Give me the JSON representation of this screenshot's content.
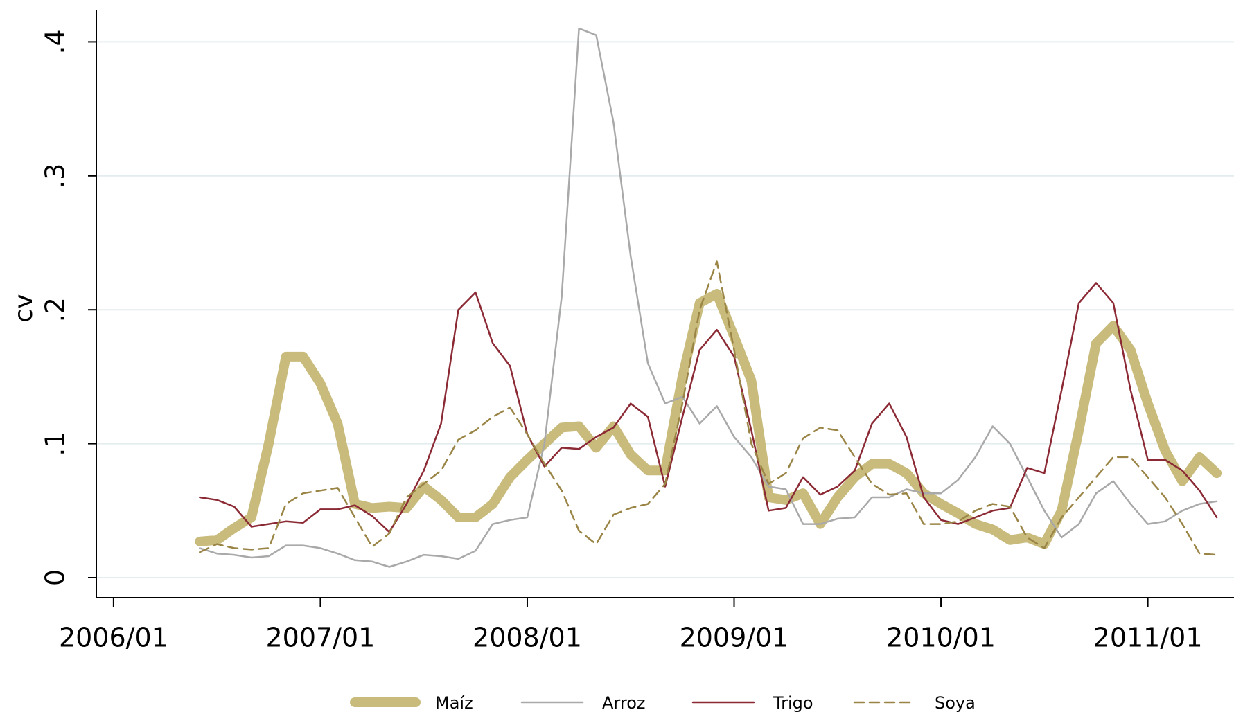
{
  "chart_data": {
    "type": "line",
    "ylabel": "cv",
    "x": [
      "2006/06",
      "2006/07",
      "2006/08",
      "2006/09",
      "2006/10",
      "2006/11",
      "2006/12",
      "2007/01",
      "2007/02",
      "2007/03",
      "2007/04",
      "2007/05",
      "2007/06",
      "2007/07",
      "2007/08",
      "2007/09",
      "2007/10",
      "2007/11",
      "2007/12",
      "2008/01",
      "2008/02",
      "2008/03",
      "2008/04",
      "2008/05",
      "2008/06",
      "2008/07",
      "2008/08",
      "2008/09",
      "2008/10",
      "2008/11",
      "2008/12",
      "2009/01",
      "2009/02",
      "2009/03",
      "2009/04",
      "2009/05",
      "2009/06",
      "2009/07",
      "2009/08",
      "2009/09",
      "2009/10",
      "2009/11",
      "2009/12",
      "2010/01",
      "2010/02",
      "2010/03",
      "2010/04",
      "2010/05",
      "2010/06",
      "2010/07",
      "2010/08",
      "2010/09",
      "2010/10",
      "2010/11",
      "2010/12",
      "2011/01",
      "2011/02",
      "2011/03",
      "2011/04",
      "2011/05"
    ],
    "series": [
      {
        "name": "Maíz",
        "color": "#c8bb7c",
        "linewidth": 14,
        "dashed": false,
        "values": [
          0.027,
          0.028,
          0.037,
          0.045,
          0.1,
          0.165,
          0.165,
          0.145,
          0.115,
          0.055,
          0.052,
          0.053,
          0.052,
          0.068,
          0.058,
          0.045,
          0.045,
          0.055,
          0.075,
          0.088,
          0.1,
          0.112,
          0.113,
          0.097,
          0.113,
          0.092,
          0.08,
          0.08,
          0.15,
          0.205,
          0.212,
          0.18,
          0.147,
          0.06,
          0.058,
          0.063,
          0.04,
          0.06,
          0.075,
          0.085,
          0.085,
          0.078,
          0.063,
          0.055,
          0.048,
          0.04,
          0.036,
          0.028,
          0.03,
          0.025,
          0.05,
          0.11,
          0.175,
          0.188,
          0.17,
          0.13,
          0.095,
          0.072,
          0.09,
          0.078
        ]
      },
      {
        "name": "Arroz",
        "color": "#a9a9a9",
        "linewidth": 2.5,
        "dashed": false,
        "values": [
          0.022,
          0.018,
          0.017,
          0.015,
          0.016,
          0.024,
          0.024,
          0.022,
          0.018,
          0.013,
          0.012,
          0.008,
          0.012,
          0.017,
          0.016,
          0.014,
          0.02,
          0.04,
          0.043,
          0.045,
          0.1,
          0.21,
          0.41,
          0.405,
          0.34,
          0.24,
          0.16,
          0.13,
          0.135,
          0.115,
          0.128,
          0.105,
          0.09,
          0.068,
          0.066,
          0.04,
          0.04,
          0.044,
          0.045,
          0.06,
          0.06,
          0.066,
          0.063,
          0.063,
          0.073,
          0.09,
          0.113,
          0.1,
          0.075,
          0.05,
          0.03,
          0.04,
          0.063,
          0.072,
          0.055,
          0.04,
          0.042,
          0.05,
          0.055,
          0.057
        ]
      },
      {
        "name": "Trigo",
        "color": "#8b2a35",
        "linewidth": 2.5,
        "dashed": false,
        "values": [
          0.06,
          0.058,
          0.053,
          0.038,
          0.04,
          0.042,
          0.041,
          0.051,
          0.051,
          0.054,
          0.046,
          0.034,
          0.055,
          0.08,
          0.115,
          0.2,
          0.213,
          0.175,
          0.158,
          0.107,
          0.083,
          0.097,
          0.096,
          0.105,
          0.112,
          0.13,
          0.12,
          0.068,
          0.12,
          0.17,
          0.185,
          0.165,
          0.11,
          0.05,
          0.052,
          0.075,
          0.062,
          0.068,
          0.08,
          0.115,
          0.13,
          0.105,
          0.06,
          0.043,
          0.04,
          0.045,
          0.05,
          0.052,
          0.082,
          0.078,
          0.14,
          0.205,
          0.22,
          0.205,
          0.14,
          0.088,
          0.088,
          0.08,
          0.065,
          0.045
        ]
      },
      {
        "name": "Soya",
        "color": "#9a8546",
        "linewidth": 2.5,
        "dashed": true,
        "values": [
          0.019,
          0.025,
          0.022,
          0.021,
          0.022,
          0.055,
          0.063,
          0.065,
          0.067,
          0.045,
          0.023,
          0.033,
          0.06,
          0.07,
          0.08,
          0.103,
          0.11,
          0.12,
          0.127,
          0.107,
          0.085,
          0.065,
          0.035,
          0.025,
          0.047,
          0.052,
          0.055,
          0.07,
          0.13,
          0.2,
          0.236,
          0.17,
          0.1,
          0.07,
          0.078,
          0.104,
          0.112,
          0.11,
          0.09,
          0.07,
          0.062,
          0.063,
          0.04,
          0.04,
          0.042,
          0.05,
          0.055,
          0.053,
          0.03,
          0.022,
          0.045,
          0.06,
          0.075,
          0.09,
          0.09,
          0.075,
          0.06,
          0.04,
          0.018,
          0.017
        ]
      }
    ],
    "xlim": [
      "2005/12",
      "2011/06"
    ],
    "xticks": [
      "2006/01",
      "2007/01",
      "2008/01",
      "2009/01",
      "2010/01",
      "2011/01"
    ],
    "ylim": [
      -0.015,
      0.424
    ],
    "yticks": [
      0,
      {
        "value": 0.1,
        "label": ".1"
      },
      {
        "value": 0.2,
        "label": ".2"
      },
      {
        "value": 0.3,
        "label": ".3"
      },
      {
        "value": 0.4,
        "label": ".4"
      }
    ],
    "grid": true,
    "legend": "bottom"
  }
}
